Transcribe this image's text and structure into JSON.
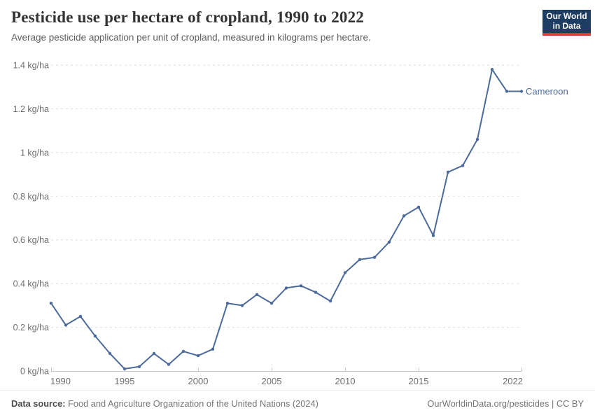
{
  "header": {
    "title": "Pesticide use per hectare of cropland, 1990 to 2022",
    "subtitle": "Average pesticide application per unit of cropland, measured in kilograms per hectare.",
    "logo": {
      "line1": "Our World",
      "line2": "in Data"
    }
  },
  "footer": {
    "datasource_label": "Data source:",
    "datasource_text": " Food and Agriculture Organization of the United Nations (2024)",
    "attribution": "OurWorldinData.org/pesticides | CC BY"
  },
  "colors": {
    "line": "#4c6a9c",
    "grid": "#dddddd",
    "axis": "#c4c4c4",
    "tick_label": "#6e6e6e",
    "logo_bg": "#1d3d63",
    "logo_accent": "#d73c32"
  },
  "chart_data": {
    "type": "line",
    "title": "Pesticide use per hectare of cropland, 1990 to 2022",
    "xlabel": "",
    "ylabel": "kg/ha",
    "x": [
      1990,
      1991,
      1992,
      1993,
      1994,
      1995,
      1996,
      1997,
      1998,
      1999,
      2000,
      2001,
      2002,
      2003,
      2004,
      2005,
      2006,
      2007,
      2008,
      2009,
      2010,
      2011,
      2012,
      2013,
      2014,
      2015,
      2016,
      2017,
      2018,
      2019,
      2020,
      2021,
      2022
    ],
    "series": [
      {
        "name": "Cameroon",
        "color": "#4c6a9c",
        "values": [
          0.31,
          0.21,
          0.25,
          0.16,
          0.08,
          0.01,
          0.02,
          0.08,
          0.03,
          0.09,
          0.07,
          0.1,
          0.31,
          0.3,
          0.35,
          0.31,
          0.38,
          0.39,
          0.36,
          0.32,
          0.45,
          0.51,
          0.52,
          0.59,
          0.71,
          0.75,
          0.62,
          0.91,
          0.94,
          1.06,
          1.38,
          1.28,
          1.28
        ]
      }
    ],
    "xlim": [
      1990,
      2022
    ],
    "ylim": [
      0,
      1.4
    ],
    "yticks": [
      0,
      0.2,
      0.4,
      0.6,
      0.8,
      1,
      1.2,
      1.4
    ],
    "ytick_labels": [
      "0 kg/ha",
      "0.2 kg/ha",
      "0.4 kg/ha",
      "0.6 kg/ha",
      "0.8 kg/ha",
      "1 kg/ha",
      "1.2 kg/ha",
      "1.4 kg/ha"
    ],
    "xticks": [
      1990,
      1995,
      2000,
      2005,
      2010,
      2015,
      2022
    ],
    "grid": "horizontal-dashed",
    "legend_position": "end-of-line-label"
  }
}
